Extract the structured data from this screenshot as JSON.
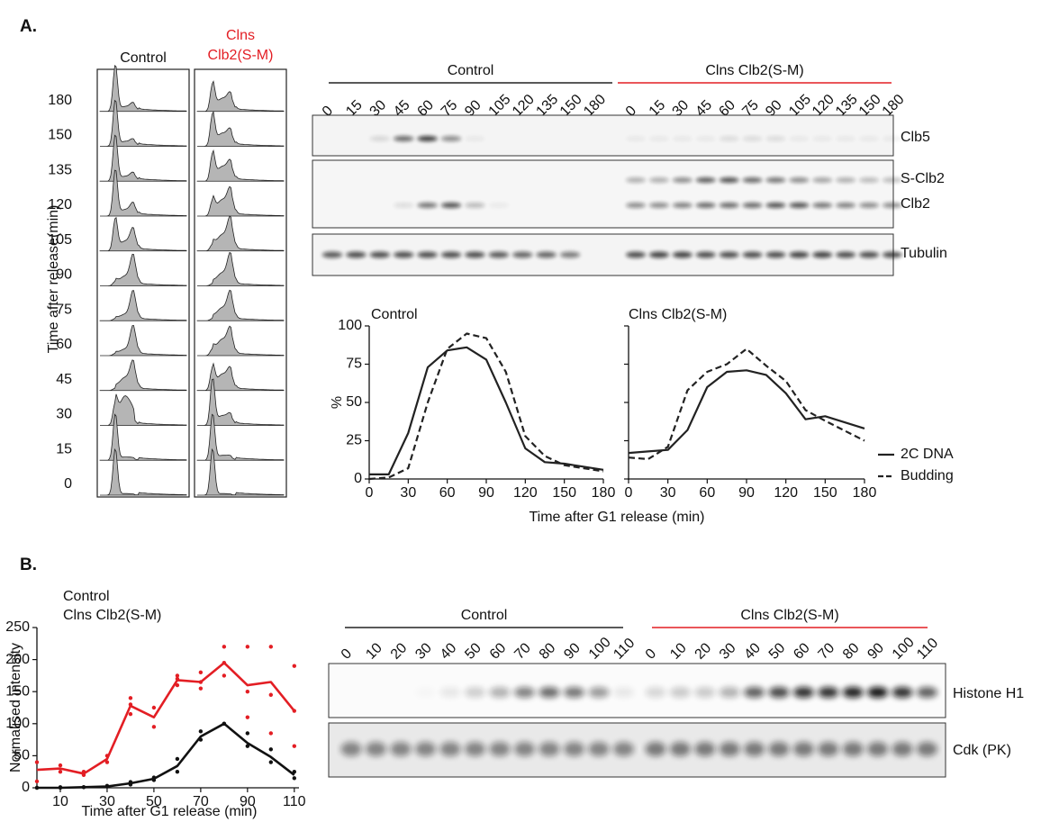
{
  "panel_labels": [
    "A.",
    "B."
  ],
  "flow": {
    "groups": [
      [
        "Control"
      ],
      [
        "Clns",
        "Clb2(S-M)"
      ]
    ],
    "times": [
      "180",
      "150",
      "135",
      "120",
      "105",
      "90",
      "75",
      "60",
      "45",
      "30",
      "15",
      "0"
    ],
    "ylabel": "Time after release(min)"
  },
  "blot_a": {
    "groups": [
      {
        "name": "Control",
        "color": "#222222",
        "lanes": [
          "0",
          "15",
          "30",
          "45",
          "60",
          "75",
          "90",
          "105",
          "120",
          "135",
          "150",
          "180"
        ]
      },
      {
        "name": "Clns Clb2(S-M)",
        "color": "#e31e24",
        "lanes": [
          "0",
          "15",
          "30",
          "45",
          "60",
          "75",
          "90",
          "105",
          "120",
          "135",
          "150",
          "180"
        ]
      }
    ],
    "bands": [
      "Clb5",
      "S-Clb2",
      "Clb2",
      "Tubulin"
    ]
  },
  "blot_b": {
    "groups": [
      {
        "name": "Control",
        "color": "#222222",
        "lanes": [
          "0",
          "10",
          "20",
          "30",
          "40",
          "50",
          "60",
          "70",
          "80",
          "90",
          "100",
          "110"
        ]
      },
      {
        "name": "Clns Clb2(S-M)",
        "color": "#e31e24",
        "lanes": [
          "0",
          "10",
          "20",
          "30",
          "40",
          "50",
          "60",
          "70",
          "80",
          "90",
          "100",
          "110"
        ]
      }
    ],
    "bands": [
      "Histone H1",
      "Cdk (PK)"
    ]
  },
  "chart_data": [
    {
      "type": "line",
      "title": "Control",
      "title_color": "#111111",
      "ylabel": "%",
      "xlabel": "Time after G1 release (min)",
      "x": [
        0,
        15,
        30,
        45,
        60,
        75,
        90,
        105,
        120,
        135,
        150,
        180
      ],
      "series": [
        {
          "color": "#222222",
          "style": "solid",
          "values": [
            3,
            3,
            30,
            73,
            84,
            86,
            78,
            50,
            20,
            11,
            10,
            6
          ]
        },
        {
          "color": "#222222",
          "style": "dashed",
          "values": [
            0,
            1,
            7,
            50,
            85,
            95,
            92,
            70,
            28,
            15,
            9,
            5
          ]
        }
      ],
      "xlim": [
        0,
        180
      ],
      "xticks": [
        0,
        30,
        60,
        90,
        120,
        150,
        180
      ],
      "ylim": [
        0,
        100
      ],
      "yticks": [
        0,
        25,
        50,
        75,
        100
      ],
      "show_ytick_labels": true
    },
    {
      "type": "line",
      "title": "Clns Clb2(S-M)",
      "title_color": "#e31e24",
      "legend": "right",
      "x": [
        0,
        15,
        30,
        45,
        60,
        75,
        90,
        105,
        120,
        135,
        150,
        180
      ],
      "series": [
        {
          "name": "2C DNA",
          "color": "#222222",
          "style": "solid",
          "values": [
            17,
            18,
            19,
            32,
            60,
            70,
            71,
            68,
            56,
            39,
            41,
            33
          ]
        },
        {
          "name": "Budding",
          "color": "#222222",
          "style": "dashed",
          "values": [
            14,
            13,
            21,
            58,
            70,
            75,
            85,
            74,
            64,
            45,
            38,
            25
          ]
        }
      ],
      "xlim": [
        0,
        180
      ],
      "xticks": [
        0,
        30,
        60,
        90,
        120,
        150,
        180
      ],
      "ylim": [
        0,
        100
      ],
      "yticks": [
        0,
        25,
        50,
        75,
        100
      ],
      "show_ytick_labels": false
    },
    {
      "type": "line",
      "ylabel": "Normalised intensity",
      "xlabel": "Time after G1 release (min)",
      "legend": "top-left",
      "x": [
        0,
        10,
        20,
        30,
        40,
        50,
        60,
        70,
        80,
        90,
        100,
        110
      ],
      "series": [
        {
          "name": "Control",
          "color": "#111111",
          "style": "solid",
          "values": [
            0,
            0,
            1,
            2,
            7,
            14,
            34,
            80,
            100,
            70,
            48,
            20
          ],
          "replicates": [
            [
              0,
              0
            ],
            [
              0,
              1
            ],
            [
              1,
              1
            ],
            [
              2,
              3
            ],
            [
              5,
              9
            ],
            [
              12,
              16
            ],
            [
              25,
              45
            ],
            [
              75,
              88
            ],
            [
              100,
              100
            ],
            [
              65,
              85
            ],
            [
              40,
              60
            ],
            [
              15,
              25
            ]
          ]
        },
        {
          "name": "Clns Clb2(S-M)",
          "color": "#e31e24",
          "style": "solid",
          "values": [
            28,
            30,
            22,
            45,
            128,
            110,
            168,
            165,
            195,
            160,
            165,
            120
          ],
          "replicates": [
            [
              10,
              40
            ],
            [
              25,
              35
            ],
            [
              20,
              25
            ],
            [
              40,
              50
            ],
            [
              115,
              130,
              140
            ],
            [
              95,
              125
            ],
            [
              160,
              170,
              175
            ],
            [
              155,
              165,
              180
            ],
            [
              175,
              195,
              220
            ],
            [
              110,
              150,
              220
            ],
            [
              85,
              145,
              220
            ],
            [
              65,
              120,
              190
            ]
          ]
        }
      ],
      "xlim": [
        0,
        112
      ],
      "xticks": [
        10,
        30,
        50,
        70,
        90,
        110
      ],
      "ylim": [
        0,
        250
      ],
      "yticks": [
        0,
        50,
        100,
        150,
        200,
        250
      ],
      "show_ytick_labels": true
    }
  ]
}
